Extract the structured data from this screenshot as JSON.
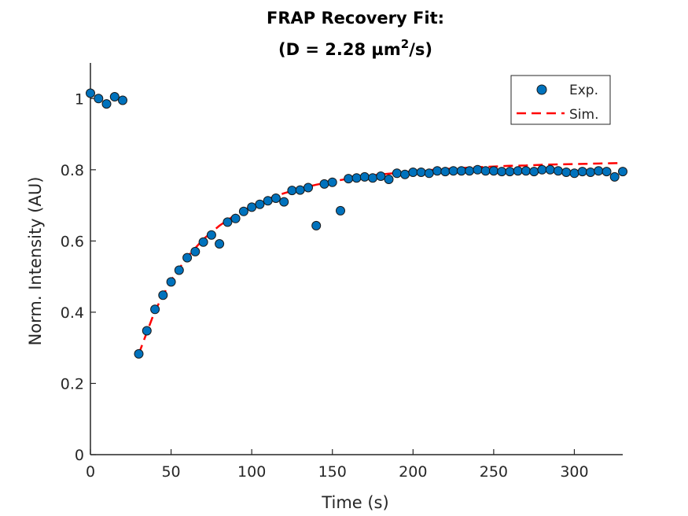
{
  "chart_data": {
    "type": "scatter",
    "title_line1": "FRAP Recovery Fit:",
    "title_line2_prefix": "(D = 2.28 µm",
    "title_line2_sup": "2",
    "title_line2_suffix": "/s)",
    "xlabel": "Time (s)",
    "ylabel": "Norm. Intensity (AU)",
    "xlim": [
      0,
      330
    ],
    "ylim": [
      0,
      1.1
    ],
    "xticks": [
      0,
      50,
      100,
      150,
      200,
      250,
      300
    ],
    "yticks": [
      0,
      0.2,
      0.4,
      0.6,
      0.8,
      1
    ],
    "ytick_labels": [
      "0",
      "0.2",
      "0.4",
      "0.6",
      "0.8",
      "1"
    ],
    "grid": false,
    "legend_position": "top-right",
    "colors": {
      "experimental": "#0072BD",
      "simulation": "#FF0000"
    },
    "series": [
      {
        "name": "Exp.",
        "style": "markers",
        "x": [
          0,
          5,
          10,
          15,
          20,
          30,
          35,
          40,
          45,
          50,
          55,
          60,
          65,
          70,
          75,
          80,
          85,
          90,
          95,
          100,
          105,
          110,
          115,
          120,
          125,
          130,
          135,
          140,
          145,
          150,
          155,
          160,
          165,
          170,
          175,
          180,
          185,
          190,
          195,
          200,
          205,
          210,
          215,
          220,
          225,
          230,
          235,
          240,
          245,
          250,
          255,
          260,
          265,
          270,
          275,
          280,
          285,
          290,
          295,
          300,
          305,
          310,
          315,
          320,
          325,
          330
        ],
        "y": [
          1.015,
          1.0,
          0.985,
          1.005,
          0.995,
          0.283,
          0.348,
          0.408,
          0.448,
          0.485,
          0.518,
          0.553,
          0.57,
          0.597,
          0.617,
          0.592,
          0.653,
          0.663,
          0.683,
          0.695,
          0.703,
          0.713,
          0.72,
          0.71,
          0.742,
          0.743,
          0.75,
          0.643,
          0.76,
          0.765,
          0.685,
          0.775,
          0.777,
          0.78,
          0.777,
          0.782,
          0.773,
          0.79,
          0.787,
          0.793,
          0.793,
          0.79,
          0.797,
          0.795,
          0.797,
          0.797,
          0.797,
          0.8,
          0.797,
          0.797,
          0.795,
          0.795,
          0.797,
          0.797,
          0.795,
          0.8,
          0.8,
          0.797,
          0.793,
          0.79,
          0.795,
          0.793,
          0.797,
          0.795,
          0.78,
          0.795
        ]
      },
      {
        "name": "Sim.",
        "style": "dashed-line",
        "x": [
          30,
          40,
          50,
          60,
          70,
          80,
          90,
          100,
          110,
          120,
          130,
          140,
          150,
          160,
          170,
          180,
          190,
          200,
          210,
          220,
          230,
          240,
          250,
          260,
          270,
          280,
          290,
          300,
          310,
          320,
          330
        ],
        "y": [
          0.283,
          0.404,
          0.49,
          0.555,
          0.605,
          0.643,
          0.674,
          0.698,
          0.718,
          0.734,
          0.747,
          0.758,
          0.767,
          0.775,
          0.781,
          0.787,
          0.791,
          0.796,
          0.799,
          0.802,
          0.805,
          0.807,
          0.809,
          0.811,
          0.812,
          0.814,
          0.815,
          0.816,
          0.817,
          0.818,
          0.819
        ]
      }
    ]
  }
}
